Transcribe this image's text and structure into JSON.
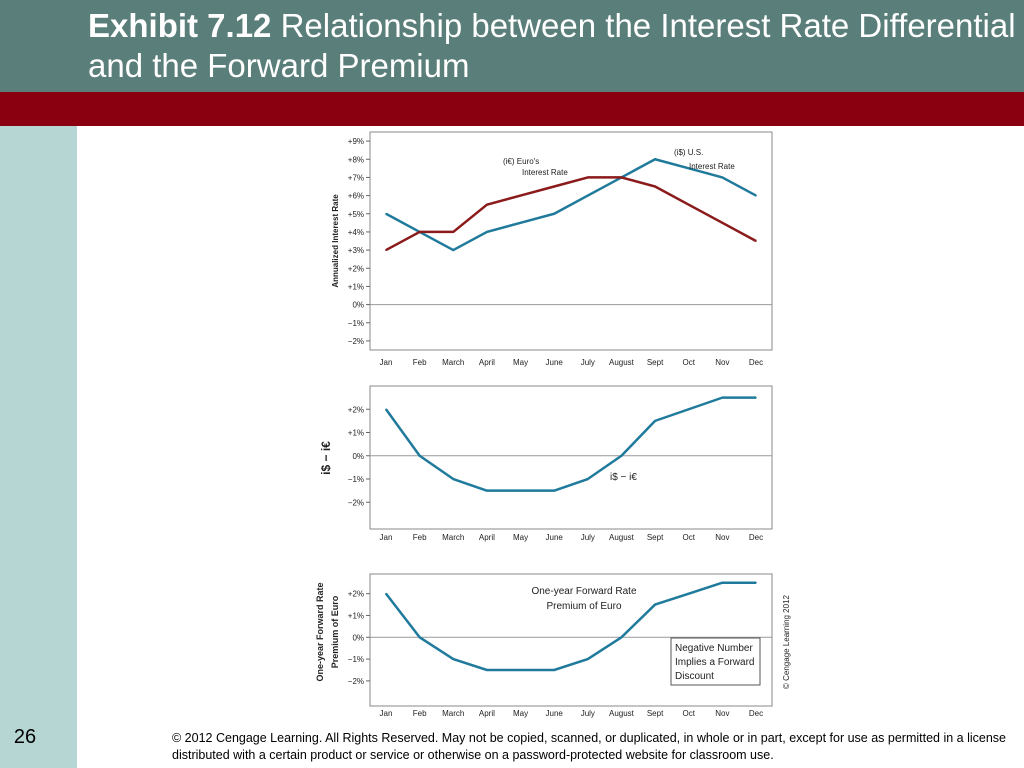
{
  "slide": {
    "title_bold": "Exhibit 7.12",
    "title_rest": " Relationship between the Interest Rate Differential and the Forward Premium",
    "page_number": "26",
    "copyright": "© 2012 Cengage Learning. All Rights Reserved. May not be copied, scanned, or duplicated, in whole or in part, except for use as permitted in a license distributed with a certain product or service or otherwise on a password-protected website for classroom use."
  },
  "colors": {
    "title_bar": "#5a7f7a",
    "red_band": "#8a0010",
    "sidebar": "#b5d6d2",
    "us_rate": "#1f7a9c",
    "euro_rate": "#8b1a1a",
    "differential": "#1f7a9c"
  },
  "chart_data": [
    {
      "type": "line",
      "ylabel": "Annualized Interest Rate",
      "x": [
        "Jan",
        "Feb",
        "March",
        "April",
        "May",
        "June",
        "July",
        "August",
        "Sept",
        "Oct",
        "Nov",
        "Dec"
      ],
      "ylim": [
        -2,
        9
      ],
      "y_ticks": [
        "−2%",
        "−1%",
        "0%",
        "+1%",
        "+2%",
        "+3%",
        "+4%",
        "+5%",
        "+6%",
        "+7%",
        "+8%",
        "+9%"
      ],
      "series": [
        {
          "name": "(i$) U.S. Interest Rate",
          "color": "#1f7a9c",
          "values": [
            5,
            4,
            3,
            4,
            4.5,
            5,
            6,
            7,
            8,
            7.5,
            7,
            6
          ]
        },
        {
          "name": "(i€) Euro's Interest Rate",
          "color": "#8b1a1a",
          "values": [
            3,
            4,
            4,
            5.5,
            6,
            6.5,
            7,
            7,
            6.5,
            5.5,
            4.5,
            3.5
          ]
        }
      ],
      "annotations": [
        {
          "text": "(i€) Euro's",
          "text2": "Interest Rate"
        },
        {
          "text": "(i$) U.S.",
          "text2": "Interest Rate"
        }
      ],
      "zero_line": true
    },
    {
      "type": "line",
      "ylabel": "i$ − i€",
      "x": [
        "Jan",
        "Feb",
        "March",
        "April",
        "May",
        "June",
        "July",
        "August",
        "Sept",
        "Oct",
        "Nov",
        "Dec"
      ],
      "ylim": [
        -3,
        3
      ],
      "y_ticks": [
        "−2%",
        "−1%",
        "0%",
        "+1%",
        "+2%"
      ],
      "series": [
        {
          "name": "i$ − i€",
          "color": "#1f7a9c",
          "values": [
            2,
            0,
            -1,
            -1.5,
            -1.5,
            -1.5,
            -1,
            0,
            1.5,
            2,
            2.5,
            2.5
          ]
        }
      ],
      "zero_line": true
    },
    {
      "type": "line",
      "ylabel": "One-year Forward Rate Premium of Euro",
      "x": [
        "Jan",
        "Feb",
        "March",
        "April",
        "May",
        "June",
        "July",
        "August",
        "Sept",
        "Oct",
        "Nov",
        "Dec"
      ],
      "ylim": [
        -3,
        3
      ],
      "y_ticks": [
        "−2%",
        "−1%",
        "0%",
        "+1%",
        "+2%"
      ],
      "series": [
        {
          "name": "One-year Forward Rate Premium of Euro",
          "color": "#1f7a9c",
          "values": [
            2,
            0,
            -1,
            -1.5,
            -1.5,
            -1.5,
            -1,
            0,
            1.5,
            2,
            2.5,
            2.5
          ]
        }
      ],
      "annotation_label": [
        "One-year Forward Rate",
        "Premium of Euro"
      ],
      "note_box": [
        "Negative Number",
        "Implies a Forward",
        "Discount"
      ],
      "side_credit": "© Cengage Learning 2012",
      "zero_line": true
    }
  ]
}
